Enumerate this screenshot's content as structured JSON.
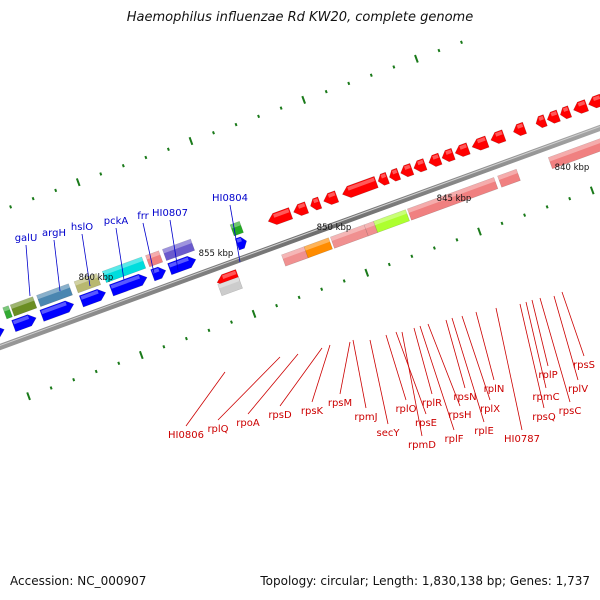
{
  "title": "Haemophilus influenzae Rd KW20, complete genome",
  "footer": {
    "accession": "Accession: NC_000907",
    "summary": "Topology: circular; Length: 1,830,138 bp; Genes: 1,737"
  },
  "scale": {
    "labels": [
      "860 kbp",
      "855 kbp",
      "850 kbp",
      "845 kbp",
      "840 kbp"
    ]
  },
  "forward_genes": [
    "galU",
    "argH",
    "hslO",
    "pckA",
    "frr",
    "HI0807",
    "HI0804"
  ],
  "reverse_genes": [
    "HI0806",
    "rplQ",
    "rpoA",
    "rpsD",
    "rpsK",
    "rpsM",
    "rpmJ",
    "secY",
    "rplO",
    "rpsE",
    "rpmD",
    "rplR",
    "rplF",
    "rpsH",
    "rpsN",
    "rplE",
    "rplX",
    "rplN",
    "HI0787",
    "rpsQ",
    "rpmC",
    "rplP",
    "rpsC",
    "rplV",
    "rpsS"
  ],
  "colors": {
    "forward_label": "#0000cc",
    "reverse_label": "#cc0000",
    "backbone": "#7a7a7a",
    "ticks": "#1a7a1a",
    "cds_forward": "#0000ff",
    "cds_reverse": "#ff0000"
  }
}
